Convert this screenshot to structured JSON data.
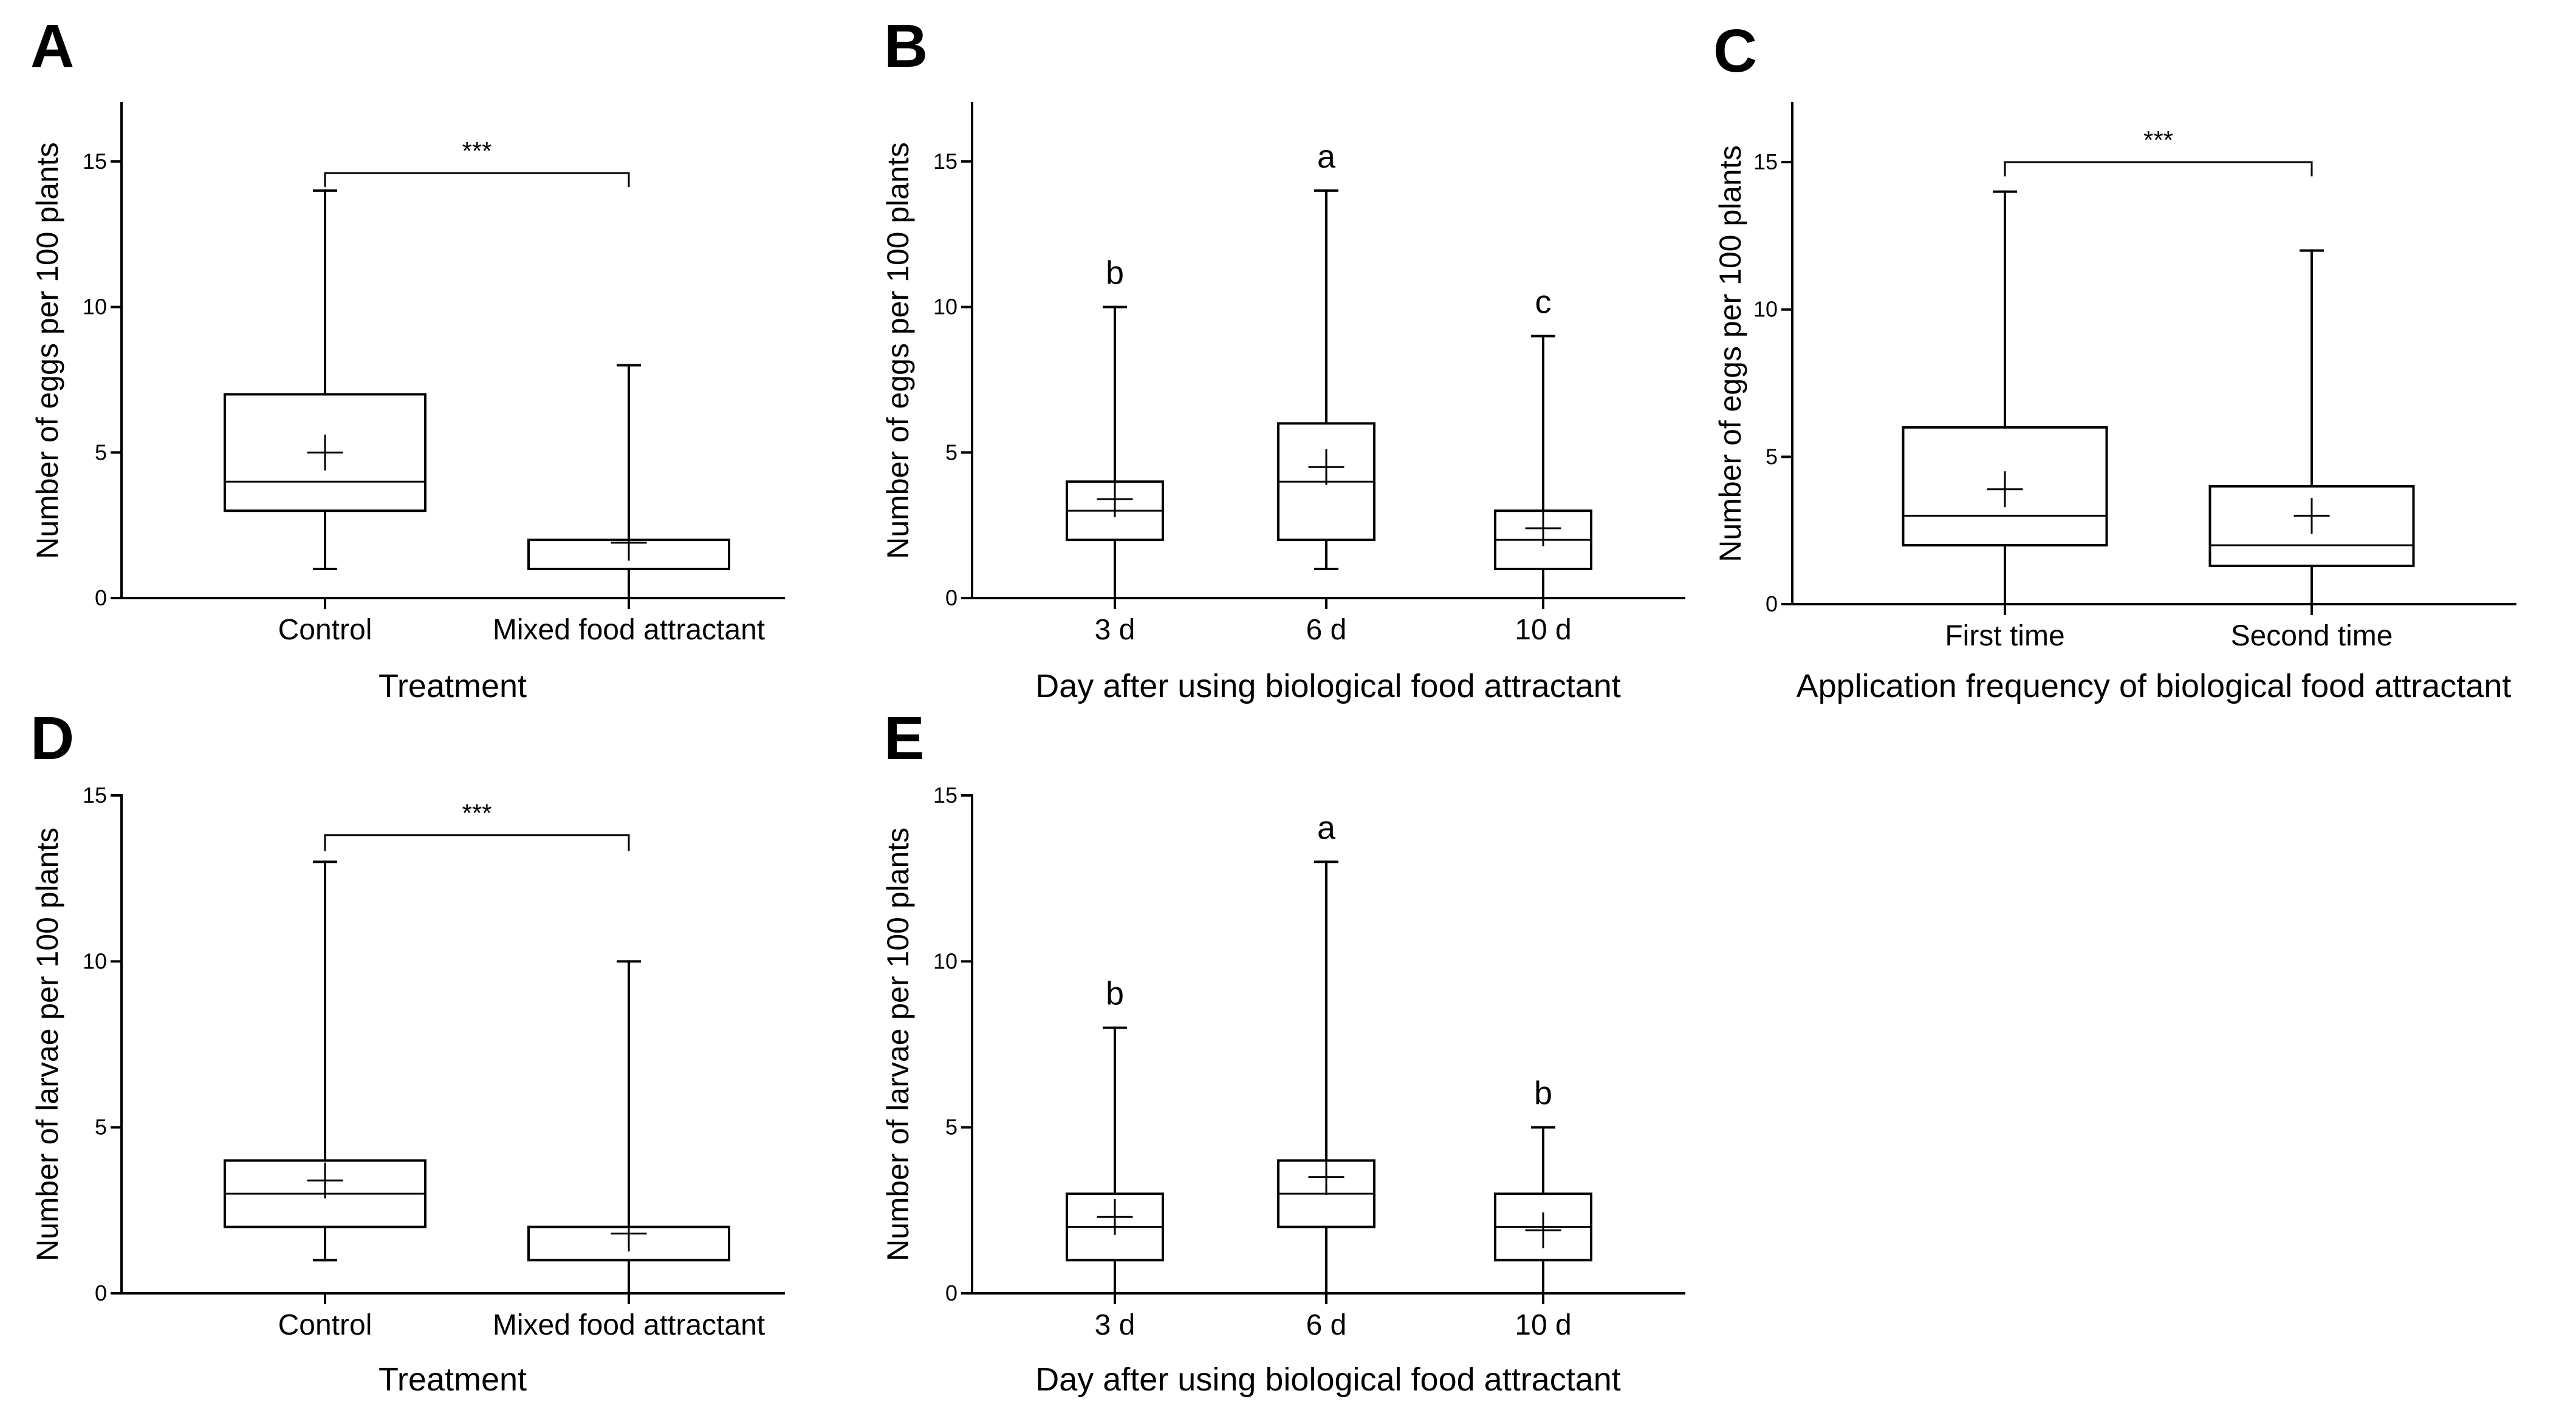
{
  "chart_data": [
    {
      "id": "A",
      "type": "box",
      "panel_label": "A",
      "xlabel": "Treatment",
      "ylabel": "Number of eggs per 100 plants",
      "ylim": [
        0,
        17
      ],
      "yticks": [
        0,
        5,
        10,
        15
      ],
      "categories": [
        "Control",
        "Mixed food attractant"
      ],
      "boxes": [
        {
          "min": 1,
          "q1": 3,
          "median": 4,
          "q3": 7,
          "max": 14,
          "mean": 5.0
        },
        {
          "min": 0,
          "q1": 1,
          "median": 2,
          "q3": 2,
          "max": 8,
          "mean": 1.9
        }
      ],
      "significance": {
        "label": "***",
        "y": 14.6,
        "drop": 0.45
      }
    },
    {
      "id": "B",
      "type": "box",
      "panel_label": "B",
      "xlabel": "Day after using biological food attractant",
      "ylabel": "Number of eggs per 100 plants",
      "ylim": [
        0,
        17
      ],
      "yticks": [
        0,
        5,
        10,
        15
      ],
      "categories": [
        "3 d",
        "6 d",
        "10 d"
      ],
      "boxes": [
        {
          "min": 0,
          "q1": 2,
          "median": 3,
          "q3": 4,
          "max": 10,
          "mean": 3.4,
          "letter": "b"
        },
        {
          "min": 1,
          "q1": 2,
          "median": 4,
          "q3": 6,
          "max": 14,
          "mean": 4.5,
          "letter": "a"
        },
        {
          "min": 0,
          "q1": 1,
          "median": 2,
          "q3": 3,
          "max": 9,
          "mean": 2.4,
          "letter": "c"
        }
      ]
    },
    {
      "id": "C",
      "type": "box",
      "panel_label": "C",
      "xlabel": "Application frequency of biological food attractant",
      "ylabel": "Number of eggs per 100 plants",
      "ylim": [
        0,
        17
      ],
      "yticks": [
        0,
        5,
        10,
        15
      ],
      "categories": [
        "First time",
        "Second time"
      ],
      "boxes": [
        {
          "min": 0,
          "q1": 2,
          "median": 3,
          "q3": 6,
          "max": 14,
          "mean": 3.9
        },
        {
          "min": 0,
          "q1": 1.3,
          "median": 2,
          "q3": 4,
          "max": 12,
          "mean": 3.0
        }
      ],
      "significance": {
        "label": "***",
        "y": 15.0,
        "drop": 0.45
      }
    },
    {
      "id": "D",
      "type": "box",
      "panel_label": "D",
      "xlabel": "Treatment",
      "ylabel": "Number of larvae per 100 plants",
      "ylim": [
        0,
        15
      ],
      "yticks": [
        0,
        5,
        10,
        15
      ],
      "categories": [
        "Control",
        "Mixed food attractant"
      ],
      "boxes": [
        {
          "min": 1,
          "q1": 2,
          "median": 3,
          "q3": 4,
          "max": 13,
          "mean": 3.4
        },
        {
          "min": 0,
          "q1": 1,
          "median": 2,
          "q3": 2,
          "max": 10,
          "mean": 1.8
        }
      ],
      "significance": {
        "label": "***",
        "y": 13.8,
        "drop": 0.45
      }
    },
    {
      "id": "E",
      "type": "box",
      "panel_label": "E",
      "xlabel": "Day after using biological food attractant",
      "ylabel": "Number of larvae per 100 plants",
      "ylim": [
        0,
        15
      ],
      "yticks": [
        0,
        5,
        10,
        15
      ],
      "categories": [
        "3 d",
        "6 d",
        "10 d"
      ],
      "boxes": [
        {
          "min": 0,
          "q1": 1,
          "median": 2,
          "q3": 3,
          "max": 8,
          "mean": 2.3,
          "letter": "b"
        },
        {
          "min": 0,
          "q1": 2,
          "median": 3,
          "q3": 4,
          "max": 13,
          "mean": 3.5,
          "letter": "a"
        },
        {
          "min": 0,
          "q1": 1,
          "median": 2,
          "q3": 3,
          "max": 5,
          "mean": 1.9,
          "letter": "b"
        }
      ]
    }
  ]
}
